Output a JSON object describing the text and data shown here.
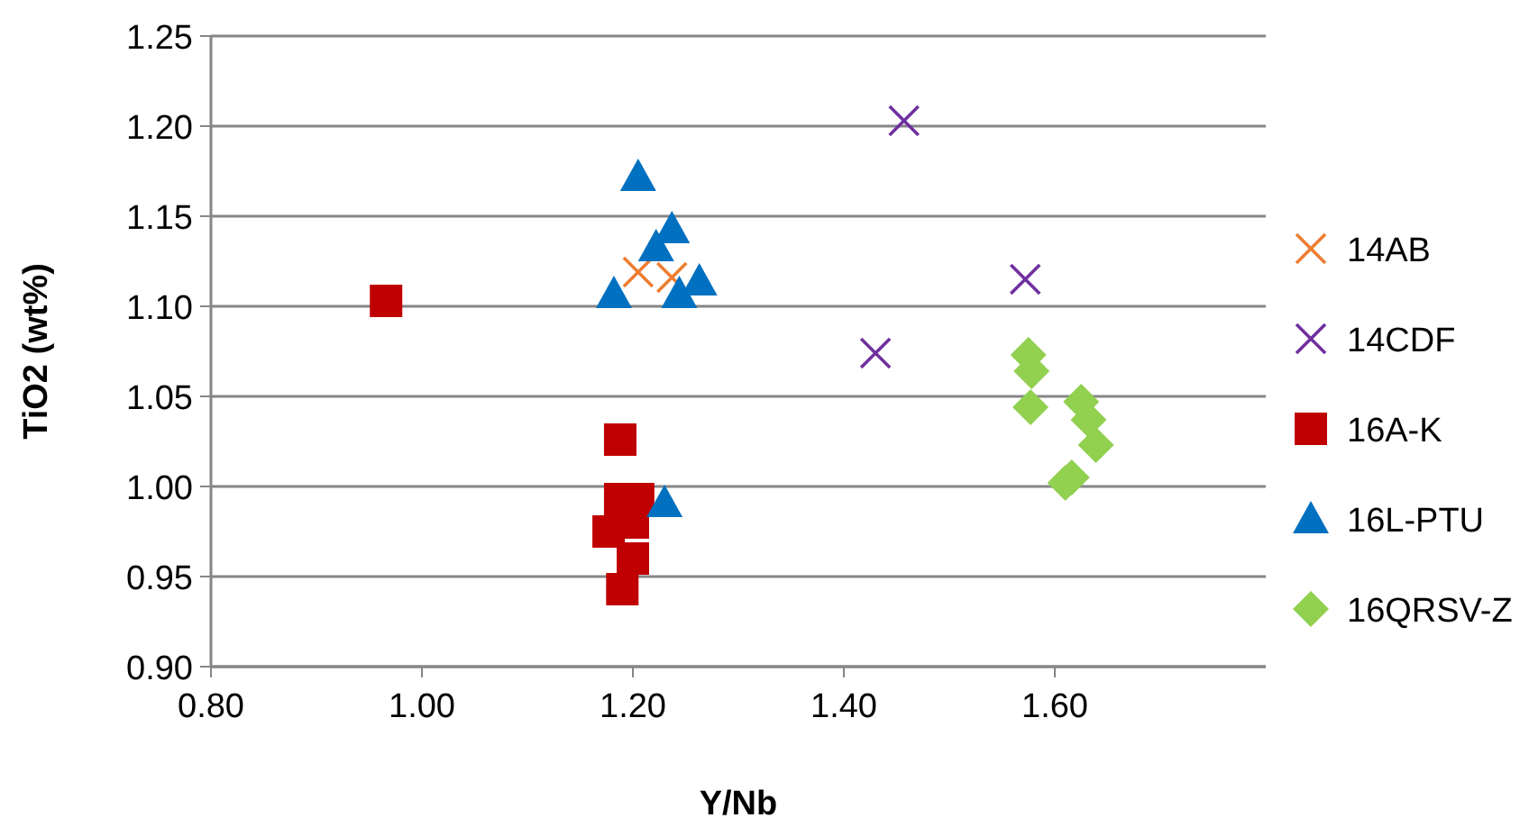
{
  "chart_data": {
    "type": "scatter",
    "xlabel": "Y/Nb",
    "ylabel": "TiO2 (wt%)",
    "xlim": [
      0.8,
      1.8
    ],
    "xticks": [
      {
        "value": 0.8,
        "label": "0.80"
      },
      {
        "value": 1.0,
        "label": "1.00"
      },
      {
        "value": 1.2,
        "label": "1.20"
      },
      {
        "value": 1.4,
        "label": "1.40"
      },
      {
        "value": 1.6,
        "label": "1.60"
      }
    ],
    "ylim": [
      0.9,
      1.25
    ],
    "yticks": [
      {
        "value": 0.9,
        "label": "0.90"
      },
      {
        "value": 0.95,
        "label": "0.95"
      },
      {
        "value": 1.0,
        "label": "1.00"
      },
      {
        "value": 1.05,
        "label": "1.05"
      },
      {
        "value": 1.1,
        "label": "1.10"
      },
      {
        "value": 1.15,
        "label": "1.15"
      },
      {
        "value": 1.2,
        "label": "1.20"
      },
      {
        "value": 1.25,
        "label": "1.25"
      }
    ],
    "grid": "y",
    "legend": "right",
    "series": [
      {
        "name": "14AB",
        "color": "#ed7d31",
        "marker": "cross",
        "x": [
          1.205,
          1.237
        ],
        "values": [
          1.119,
          1.116
        ]
      },
      {
        "name": "14CDF",
        "color": "#7030a0",
        "marker": "cross",
        "x": [
          1.457,
          1.572,
          1.43
        ],
        "values": [
          1.203,
          1.115,
          1.074
        ]
      },
      {
        "name": "16A-K",
        "color": "#c00000",
        "marker": "square",
        "x": [
          0.966,
          1.188,
          1.188,
          1.205,
          1.177,
          1.2,
          1.2,
          1.19
        ],
        "values": [
          1.103,
          1.026,
          0.993,
          0.993,
          0.975,
          0.98,
          0.96,
          0.943
        ]
      },
      {
        "name": "16L-PTU",
        "color": "#0070c0",
        "marker": "triangle",
        "x": [
          1.205,
          1.237,
          1.222,
          1.182,
          1.244,
          1.263,
          1.23
        ],
        "values": [
          1.172,
          1.143,
          1.133,
          1.107,
          1.107,
          1.114,
          0.991
        ]
      },
      {
        "name": "16QRSV-Z",
        "color": "#92d050",
        "marker": "diamond",
        "x": [
          1.575,
          1.578,
          1.577,
          1.625,
          1.632,
          1.639,
          1.616,
          1.61
        ],
        "values": [
          1.073,
          1.064,
          1.044,
          1.047,
          1.037,
          1.023,
          1.005,
          1.002
        ]
      }
    ]
  }
}
